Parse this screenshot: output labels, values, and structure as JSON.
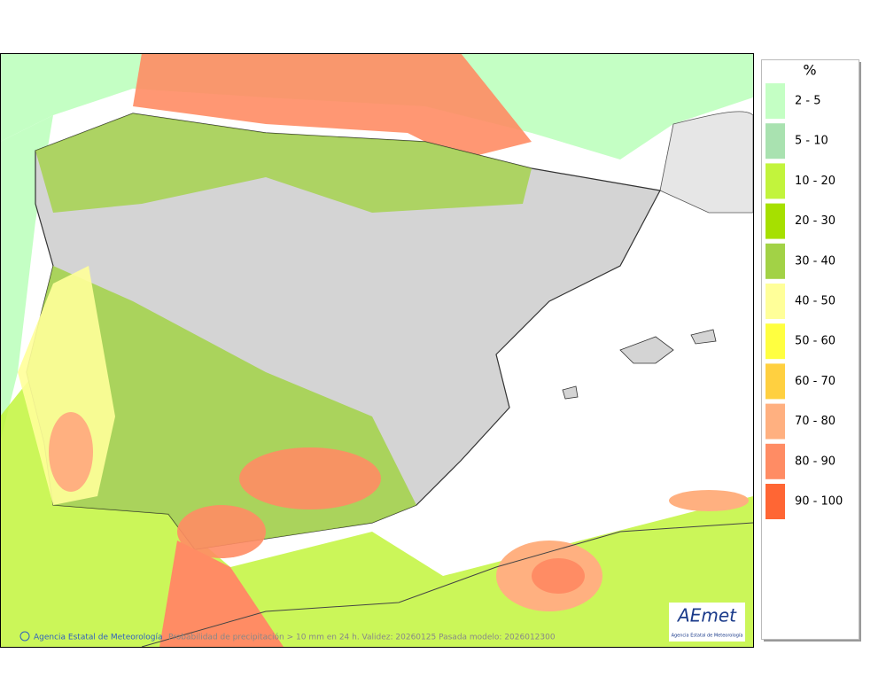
{
  "legend": {
    "title": "%",
    "items": [
      {
        "label": "2 - 5",
        "color": "#c4ffc4"
      },
      {
        "label": "5 - 10",
        "color": "#a9e2b0"
      },
      {
        "label": "10 - 20",
        "color": "#c2f43c"
      },
      {
        "label": "20 - 30",
        "color": "#a6e000"
      },
      {
        "label": "30 - 40",
        "color": "#a2d246"
      },
      {
        "label": "40 - 50",
        "color": "#ffff99"
      },
      {
        "label": "50 - 60",
        "color": "#ffff40"
      },
      {
        "label": "60 - 70",
        "color": "#ffd040"
      },
      {
        "label": "70 - 80",
        "color": "#ffb080"
      },
      {
        "label": "80 - 90",
        "color": "#ff8c64"
      },
      {
        "label": "90 - 100",
        "color": "#ff6634"
      }
    ]
  },
  "footer": {
    "credit": "Agencia Estatal de Meteorología",
    "caption": "Probabilidad de precipitación > 10 mm en 24 h. Validez: 20260125 Pasada modelo: 2026012300"
  },
  "logo": {
    "name": "AEmet",
    "subtitle": "Agencia Estatal de Meteorología"
  }
}
